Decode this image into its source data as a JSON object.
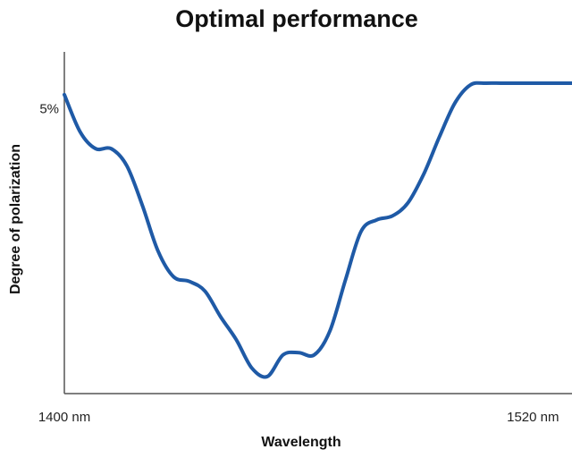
{
  "chart_data": {
    "type": "line",
    "title": "Optimal performance",
    "xlabel": "Wavelength",
    "ylabel": "Degree of polarization",
    "x_tick_labels": [
      {
        "value": 1400,
        "label": "1400 nm"
      },
      {
        "value": 1520,
        "label": "1520 nm"
      }
    ],
    "y_tick_labels": [
      {
        "value": 5,
        "label": "5%"
      }
    ],
    "xlim": [
      1400,
      1530
    ],
    "ylim": [
      0,
      6
    ],
    "grid": false,
    "series": [
      {
        "color": "#1f5aa6",
        "x": [
          1400,
          1404,
          1408,
          1412,
          1416,
          1420,
          1424,
          1428,
          1432,
          1436,
          1440,
          1444,
          1448,
          1452,
          1456,
          1460,
          1464,
          1468,
          1472,
          1476,
          1480,
          1484,
          1488,
          1492,
          1496,
          1500,
          1504,
          1508,
          1512,
          1516,
          1520,
          1524,
          1528,
          1530
        ],
        "y": [
          5.25,
          4.6,
          4.3,
          4.3,
          4.0,
          3.3,
          2.5,
          2.05,
          1.97,
          1.8,
          1.35,
          0.95,
          0.45,
          0.3,
          0.68,
          0.72,
          0.68,
          1.1,
          2.0,
          2.85,
          3.05,
          3.12,
          3.35,
          3.85,
          4.5,
          5.1,
          5.42,
          5.45,
          5.45,
          5.45,
          5.45,
          5.45,
          5.45,
          5.45
        ]
      }
    ]
  }
}
